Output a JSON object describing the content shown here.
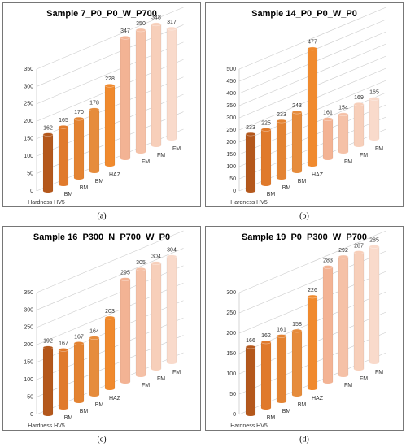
{
  "chart_data": [
    {
      "type": "bar3d",
      "title": "Sample 7_P0_P0_W_P700",
      "label": "(a)",
      "x_label": "Hardness HV5",
      "categories": [
        null,
        "BM",
        "BM",
        "BM",
        "HAZ",
        null,
        "FM",
        "FM",
        "FM"
      ],
      "values": [
        162,
        165,
        170,
        178,
        228,
        347,
        350,
        348,
        317
      ],
      "colors": [
        "#b4581c",
        "#e07a2c",
        "#e38332",
        "#e68c3c",
        "#f08a2e",
        "#f3b394",
        "#f5c1a7",
        "#f7cfba",
        "#f9dacb"
      ],
      "ylim": [
        0,
        350
      ],
      "yticks": [
        0,
        50,
        100,
        150,
        200,
        250,
        300,
        350
      ],
      "grid": true
    },
    {
      "type": "bar3d",
      "title": "Sample 14_P0_P0_W_P0",
      "label": "(b)",
      "x_label": "Hardness HV5",
      "categories": [
        null,
        "BM",
        "BM",
        "BM",
        "HAZ",
        null,
        "FM",
        "FM",
        "FM"
      ],
      "values": [
        233,
        225,
        233,
        243,
        477,
        161,
        154,
        169,
        165
      ],
      "colors": [
        "#b4581c",
        "#e07a2c",
        "#e38332",
        "#e68c3c",
        "#f08a2e",
        "#f3b394",
        "#f5c1a7",
        "#f7cfba",
        "#f9dacb"
      ],
      "ylim": [
        0,
        500
      ],
      "yticks": [
        0,
        50,
        100,
        150,
        200,
        250,
        300,
        350,
        400,
        450,
        500
      ],
      "grid": true
    },
    {
      "type": "bar3d",
      "title": "Sample 16_P300_N_P700_W_P0",
      "label": "(c)",
      "x_label": "Hardness HV5",
      "categories": [
        null,
        "BM",
        "BM",
        "BM",
        "HAZ",
        null,
        "FM",
        "FM",
        "FM"
      ],
      "values": [
        192,
        167,
        167,
        164,
        203,
        295,
        305,
        304,
        304
      ],
      "colors": [
        "#b4581c",
        "#e07a2c",
        "#e38332",
        "#e68c3c",
        "#f08a2e",
        "#f3b394",
        "#f5c1a7",
        "#f7cfba",
        "#f9dacb"
      ],
      "ylim": [
        0,
        350
      ],
      "yticks": [
        0,
        50,
        100,
        150,
        200,
        250,
        300,
        350
      ],
      "grid": true
    },
    {
      "type": "bar3d",
      "title": "Sample 19_P0_P300_W_P700",
      "label": "(d)",
      "x_label": "Hardness HV5",
      "categories": [
        null,
        "BM",
        "BM",
        "BM",
        "HAZ",
        null,
        "FM",
        "FM",
        "FM"
      ],
      "values": [
        166,
        162,
        161,
        158,
        226,
        283,
        292,
        287,
        285
      ],
      "colors": [
        "#b4581c",
        "#e07a2c",
        "#e38332",
        "#e68c3c",
        "#f08a2e",
        "#f3b394",
        "#f5c1a7",
        "#f7cfba",
        "#f9dacb"
      ],
      "ylim": [
        0,
        300
      ],
      "yticks": [
        0,
        50,
        100,
        150,
        200,
        250,
        300
      ],
      "grid": true
    }
  ]
}
